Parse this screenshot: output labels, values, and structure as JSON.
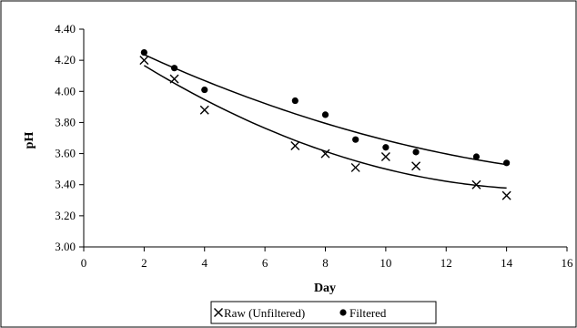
{
  "chart_data": {
    "type": "scatter",
    "xlabel": "Day",
    "ylabel": "pH",
    "xlim": [
      0,
      16
    ],
    "ylim": [
      3.0,
      4.4
    ],
    "xticks": [
      "0",
      "2",
      "4",
      "6",
      "8",
      "10",
      "12",
      "14",
      "16"
    ],
    "yticks": [
      "3.00",
      "3.20",
      "3.40",
      "3.60",
      "3.80",
      "4.00",
      "4.20",
      "4.40"
    ],
    "grid": false,
    "legend": "bottom",
    "series": [
      {
        "name": "Raw (Unfiltered)",
        "marker": "x",
        "color": "#000000",
        "trendline": "polynomial-2",
        "x": [
          2,
          3,
          4,
          7,
          8,
          9,
          10,
          11,
          13,
          14
        ],
        "y": [
          4.2,
          4.08,
          3.88,
          3.65,
          3.6,
          3.51,
          3.58,
          3.52,
          3.4,
          3.33
        ]
      },
      {
        "name": "Filtered",
        "marker": "circle",
        "color": "#000000",
        "trendline": "polynomial-2",
        "x": [
          2,
          3,
          4,
          7,
          8,
          9,
          10,
          11,
          13,
          14
        ],
        "y": [
          4.25,
          4.15,
          4.01,
          3.94,
          3.85,
          3.69,
          3.64,
          3.61,
          3.58,
          3.54
        ]
      }
    ]
  }
}
